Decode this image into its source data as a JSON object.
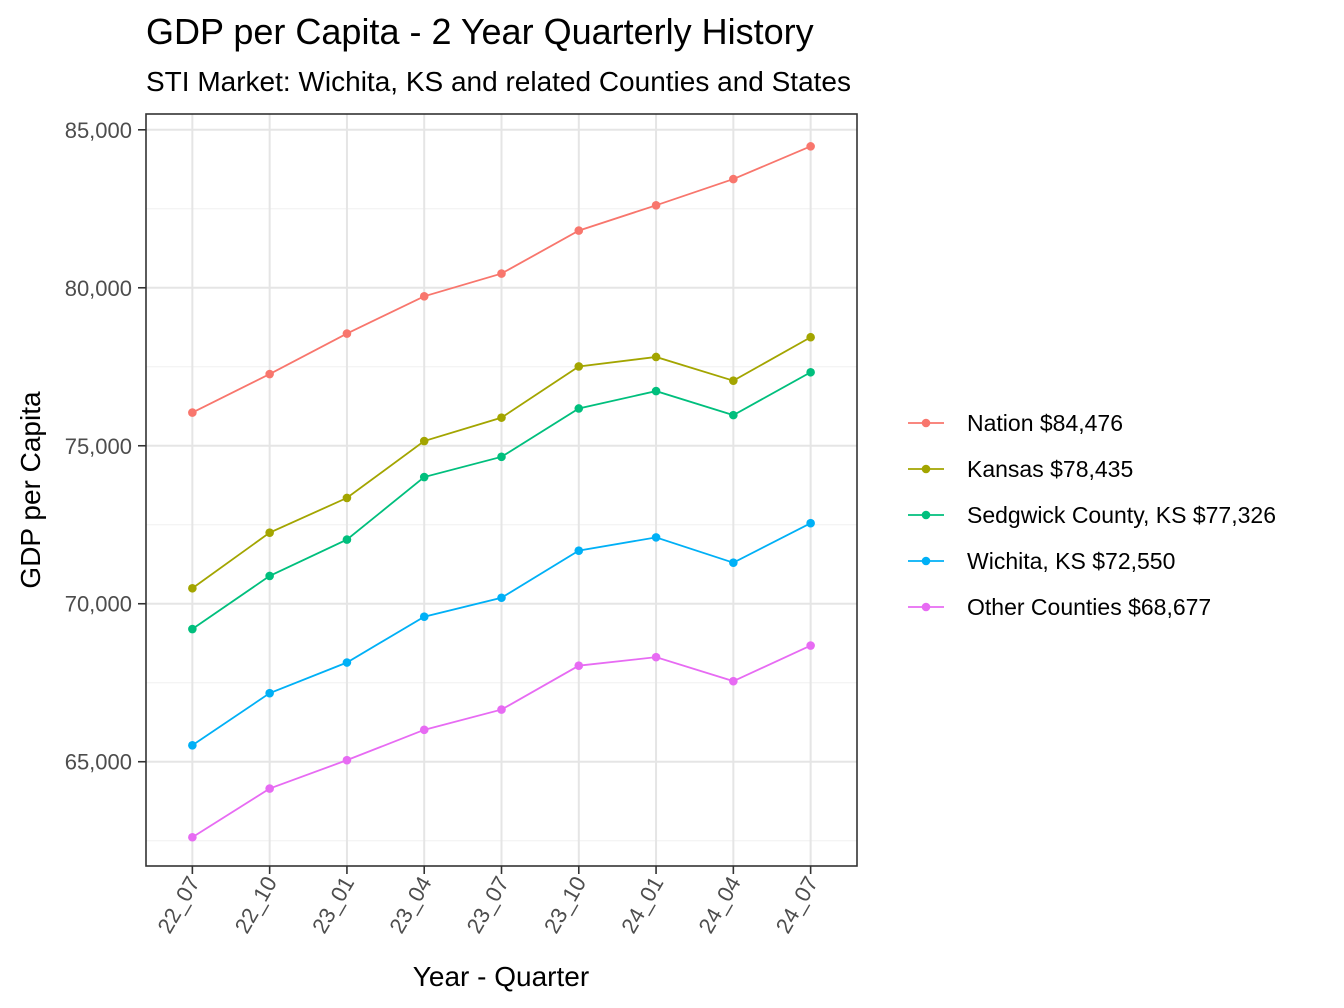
{
  "chart_data": {
    "type": "line",
    "title": "GDP per Capita - 2 Year Quarterly History",
    "subtitle": "STI Market: Wichita, KS and related Counties and States",
    "xlabel": "Year - Quarter",
    "ylabel": "GDP per Capita",
    "categories": [
      "22_07",
      "22_10",
      "23_01",
      "23_04",
      "23_07",
      "23_10",
      "24_01",
      "24_04",
      "24_07"
    ],
    "ylim": [
      61700,
      85500
    ],
    "yticks": [
      65000,
      70000,
      75000,
      80000,
      85000
    ],
    "ytick_labels": [
      "65,000",
      "70,000",
      "75,000",
      "80,000",
      "85,000"
    ],
    "grid": true,
    "legend_position": "right",
    "series": [
      {
        "name": "Nation $84,476",
        "color": "#F8766D",
        "values": [
          76050,
          77270,
          78550,
          79730,
          80450,
          81810,
          82610,
          83440,
          84476
        ]
      },
      {
        "name": "Kansas $78,435",
        "color": "#A3A500",
        "values": [
          70490,
          72250,
          73350,
          75150,
          75890,
          77510,
          77810,
          77060,
          78435
        ]
      },
      {
        "name": "Sedgwick County, KS $77,326",
        "color": "#00BF7D",
        "values": [
          69200,
          70880,
          72030,
          74010,
          74650,
          76180,
          76730,
          75970,
          77326
        ]
      },
      {
        "name": "Wichita, KS $72,550",
        "color": "#00B0F6",
        "values": [
          65520,
          67170,
          68140,
          69590,
          70190,
          71680,
          72100,
          71300,
          72550
        ]
      },
      {
        "name": "Other Counties $68,677",
        "color": "#E76BF3",
        "values": [
          62610,
          64150,
          65050,
          66010,
          66650,
          68040,
          68310,
          67550,
          68677
        ]
      }
    ]
  }
}
